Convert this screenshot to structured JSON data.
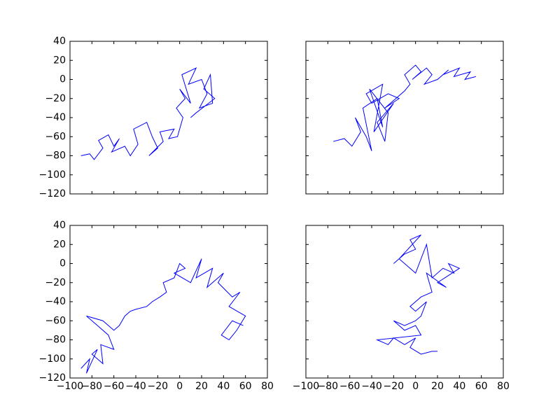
{
  "chart_data": [
    {
      "type": "line",
      "color": "#0000ff",
      "x": [
        -90,
        -82,
        -78,
        -70,
        -74,
        -65,
        -60,
        -55,
        -62,
        -50,
        -45,
        -38,
        -42,
        -30,
        -25,
        -20,
        -28,
        -15,
        -18,
        -5,
        -10,
        -2,
        3,
        -3,
        5,
        0,
        10,
        2,
        15,
        8,
        20,
        25,
        18,
        30,
        28,
        22,
        32,
        15,
        10
      ],
      "values": [
        -80,
        -78,
        -84,
        -72,
        -64,
        -58,
        -70,
        -62,
        -76,
        -70,
        -80,
        -68,
        -52,
        -45,
        -60,
        -72,
        -80,
        -65,
        -55,
        -52,
        -62,
        -60,
        -40,
        -30,
        -20,
        -10,
        -25,
        5,
        12,
        -5,
        0,
        -15,
        -30,
        -25,
        5,
        -10,
        -20,
        -35,
        -40
      ],
      "xlim": [
        -100,
        80
      ],
      "ylim": [
        -120,
        40
      ],
      "yticks": [
        {
          "value": -120,
          "label": "−120"
        },
        {
          "value": -100,
          "label": "−100"
        },
        {
          "value": -80,
          "label": "−80"
        },
        {
          "value": -60,
          "label": "−60"
        },
        {
          "value": -40,
          "label": "−40"
        },
        {
          "value": -20,
          "label": "−20"
        },
        0,
        20,
        40
      ]
    },
    {
      "type": "line",
      "color": "#0000ff",
      "x": [
        -75,
        -65,
        -58,
        -50,
        -55,
        -45,
        -40,
        -48,
        -35,
        -30,
        -42,
        -25,
        -28,
        -35,
        -20,
        -38,
        -30,
        -45,
        -40,
        -25,
        -15,
        -28,
        -10,
        -5,
        -10,
        0,
        5,
        -3,
        10,
        15,
        8,
        20,
        30,
        25,
        40,
        35,
        50,
        45,
        55
      ],
      "values": [
        -65,
        -62,
        -70,
        -55,
        -40,
        -60,
        -75,
        -30,
        -20,
        -50,
        -10,
        -35,
        -65,
        -45,
        -25,
        -55,
        -5,
        -15,
        -25,
        -15,
        -20,
        -30,
        -12,
        -5,
        5,
        15,
        8,
        0,
        12,
        5,
        -5,
        0,
        10,
        5,
        12,
        3,
        8,
        0,
        3
      ],
      "xlim": [
        -100,
        80
      ],
      "ylim": [
        -120,
        40
      ]
    },
    {
      "type": "line",
      "color": "#0000ff",
      "x": [
        -90,
        -82,
        -85,
        -75,
        -80,
        -70,
        -72,
        -60,
        -65,
        -75,
        -85,
        -70,
        -60,
        -55,
        -50,
        -45,
        -40,
        -30,
        -25,
        -18,
        -12,
        -15,
        -5,
        0,
        5,
        -5,
        10,
        20,
        15,
        30,
        25,
        40,
        35,
        48,
        55,
        45,
        60,
        52,
        45,
        38,
        48,
        58
      ],
      "values": [
        -110,
        -100,
        -115,
        -90,
        -95,
        -105,
        -85,
        -90,
        -75,
        -65,
        -55,
        -60,
        -70,
        -65,
        -55,
        -50,
        -48,
        -45,
        -40,
        -35,
        -30,
        -20,
        -15,
        0,
        -5,
        -10,
        -20,
        5,
        -15,
        -5,
        -25,
        -10,
        -20,
        -35,
        -30,
        -45,
        -55,
        -70,
        -80,
        -75,
        -60,
        -65
      ],
      "xlim": [
        -100,
        80
      ],
      "ylim": [
        -120,
        40
      ],
      "xticks": [
        {
          "value": -100,
          "label": "−100"
        },
        {
          "value": -80,
          "label": "−80"
        },
        {
          "value": -60,
          "label": "−60"
        },
        {
          "value": -40,
          "label": "−40"
        },
        {
          "value": -20,
          "label": "−20"
        },
        0,
        20,
        40,
        60,
        80
      ],
      "yticks": [
        {
          "value": -120,
          "label": "−120"
        },
        {
          "value": -100,
          "label": "−100"
        },
        {
          "value": -80,
          "label": "−80"
        },
        {
          "value": -60,
          "label": "−60"
        },
        {
          "value": -40,
          "label": "−40"
        },
        {
          "value": -20,
          "label": "−20"
        },
        0,
        20,
        40
      ]
    },
    {
      "type": "line",
      "color": "#0000ff",
      "x": [
        -20,
        -10,
        0,
        -5,
        5,
        -15,
        0,
        10,
        15,
        25,
        35,
        30,
        40,
        20,
        28,
        10,
        15,
        5,
        -5,
        0,
        10,
        5,
        0,
        -10,
        -20,
        -10,
        0,
        5,
        -35,
        -25,
        -20,
        -10,
        0,
        -5,
        5,
        15,
        20
      ],
      "values": [
        0,
        10,
        15,
        25,
        30,
        5,
        -10,
        20,
        -15,
        -5,
        -10,
        0,
        -5,
        -20,
        -25,
        -10,
        -30,
        -35,
        -45,
        -50,
        -40,
        -55,
        -60,
        -65,
        -60,
        -70,
        -65,
        -75,
        -80,
        -85,
        -78,
        -85,
        -78,
        -88,
        -95,
        -92,
        -92
      ],
      "xlim": [
        -100,
        80
      ],
      "ylim": [
        -120,
        40
      ],
      "xticks": [
        {
          "value": -100,
          "label": "−100"
        },
        {
          "value": -80,
          "label": "−80"
        },
        {
          "value": -60,
          "label": "−60"
        },
        {
          "value": -40,
          "label": "−40"
        },
        {
          "value": -20,
          "label": "−20"
        },
        0,
        20,
        40,
        60,
        80
      ]
    }
  ]
}
